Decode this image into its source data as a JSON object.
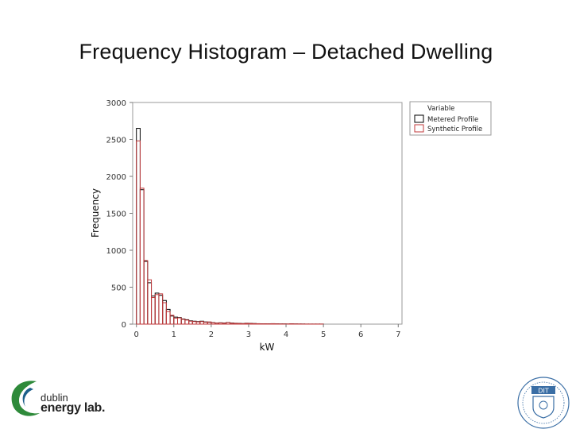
{
  "slide": {
    "title": "Frequency Histogram – Detached Dwelling"
  },
  "chart_data": {
    "type": "histogram",
    "xlabel": "kW",
    "ylabel": "Frequency",
    "xlim": [
      -0.1,
      7.1
    ],
    "ylim": [
      0,
      3000
    ],
    "x_ticks": [
      "0",
      "1",
      "2",
      "3",
      "4",
      "5",
      "6",
      "7"
    ],
    "y_ticks": [
      "0",
      "500",
      "1000",
      "1500",
      "2000",
      "2500",
      "3000"
    ],
    "bin_width": 0.1,
    "bin_start": 0.0,
    "legend": {
      "title": "Variable",
      "position": "top-right-outside"
    },
    "grid": false,
    "series": [
      {
        "name": "Metered Profile",
        "color": "#000000",
        "values": [
          2650,
          1820,
          850,
          560,
          380,
          420,
          390,
          320,
          200,
          110,
          95,
          90,
          70,
          60,
          45,
          40,
          35,
          40,
          30,
          25,
          20,
          15,
          18,
          15,
          22,
          15,
          12,
          10,
          8,
          12,
          10,
          8,
          6,
          5,
          5,
          4,
          6,
          4,
          3,
          3,
          2,
          5,
          3,
          2,
          2,
          1,
          1,
          1,
          1,
          1,
          0,
          0,
          0,
          0,
          0,
          0,
          0,
          0,
          0,
          0,
          0,
          0,
          0,
          0,
          0,
          0,
          0,
          0,
          0,
          0
        ]
      },
      {
        "name": "Synthetic Profile",
        "color": "#c0393b",
        "values": [
          2480,
          1840,
          860,
          600,
          360,
          400,
          410,
          290,
          170,
          120,
          80,
          85,
          65,
          55,
          40,
          35,
          30,
          35,
          25,
          30,
          18,
          14,
          15,
          12,
          20,
          12,
          10,
          8,
          6,
          10,
          8,
          6,
          5,
          4,
          4,
          3,
          5,
          3,
          2,
          2,
          2,
          4,
          2,
          2,
          1,
          1,
          1,
          1,
          1,
          1,
          0,
          0,
          0,
          0,
          0,
          0,
          0,
          0,
          0,
          0,
          0,
          0,
          0,
          0,
          0,
          0,
          0,
          0,
          0,
          0
        ]
      }
    ]
  },
  "logos": {
    "dublin": {
      "line1": "dublin",
      "line2": "energy lab.",
      "accent": "#2e8a3a",
      "accent2": "#1d5f8a"
    },
    "dit": {
      "text": "DIT",
      "color": "#3a6ea5"
    }
  }
}
